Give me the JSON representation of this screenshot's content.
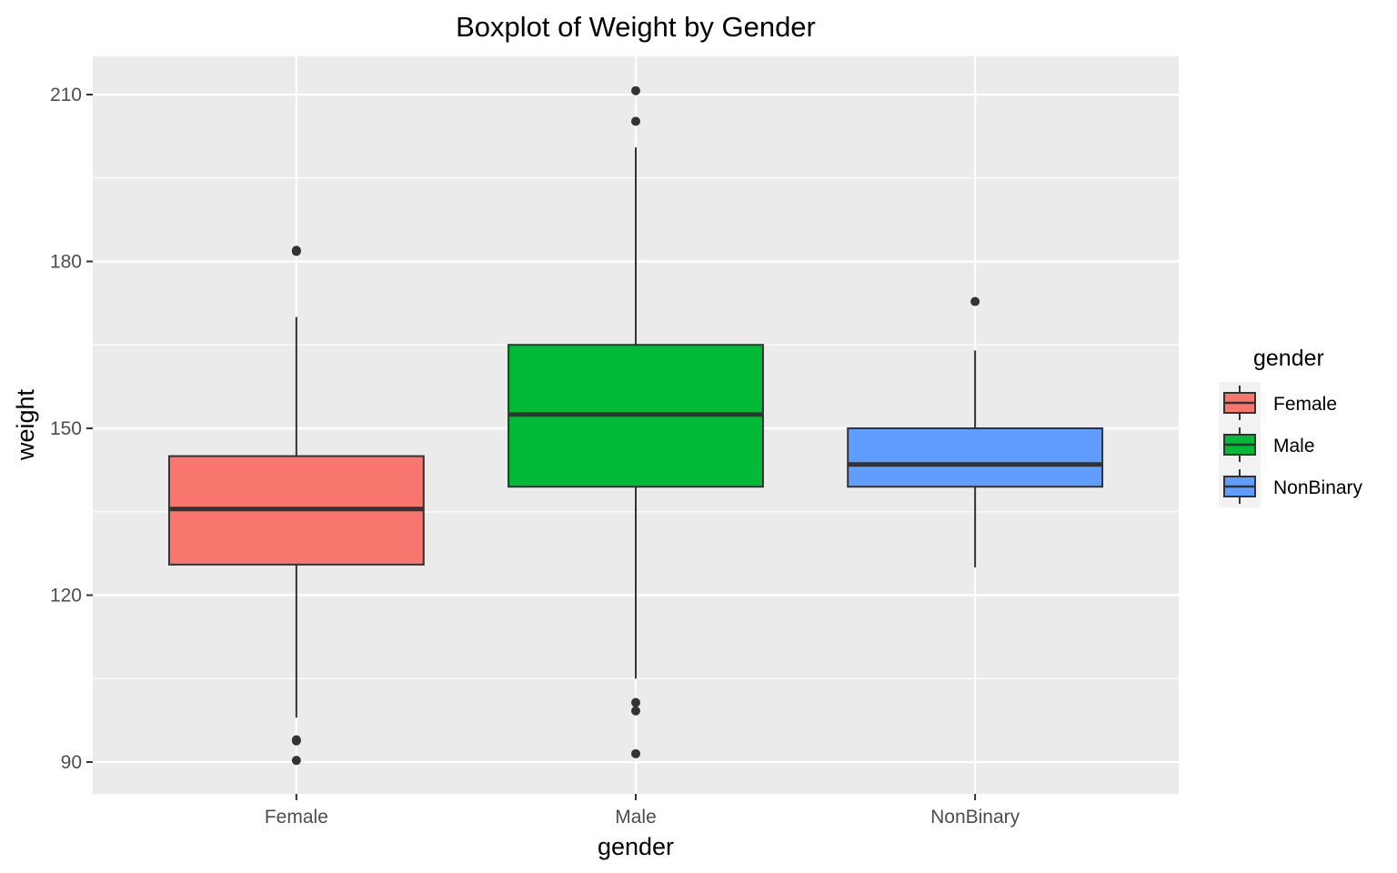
{
  "chart_data": {
    "type": "box",
    "title": "Boxplot of Weight by Gender",
    "xlabel": "gender",
    "ylabel": "weight",
    "ylim": [
      83,
      215
    ],
    "yticks": [
      90,
      120,
      150,
      180,
      210
    ],
    "grid": true,
    "categories": [
      "Female",
      "Male",
      "NonBinary"
    ],
    "series": [
      {
        "name": "Female",
        "color": "#F8766D",
        "min": 98,
        "q1": 125.5,
        "median": 135.5,
        "q3": 145,
        "max": 170,
        "outliers": [
          182,
          181.8,
          94,
          93.8,
          90.3
        ]
      },
      {
        "name": "Male",
        "color": "#00BA38",
        "min": 105,
        "q1": 139.5,
        "median": 152.5,
        "q3": 165,
        "max": 200.5,
        "outliers": [
          210.7,
          205.2,
          100.7,
          99.2,
          91.5
        ]
      },
      {
        "name": "NonBinary",
        "color": "#619CFF",
        "min": 125,
        "q1": 139.5,
        "median": 143.5,
        "q3": 150,
        "max": 164,
        "outliers": [
          172.8
        ]
      }
    ],
    "legend": {
      "title": "gender",
      "position": "right",
      "entries": [
        "Female",
        "Male",
        "NonBinary"
      ]
    }
  }
}
